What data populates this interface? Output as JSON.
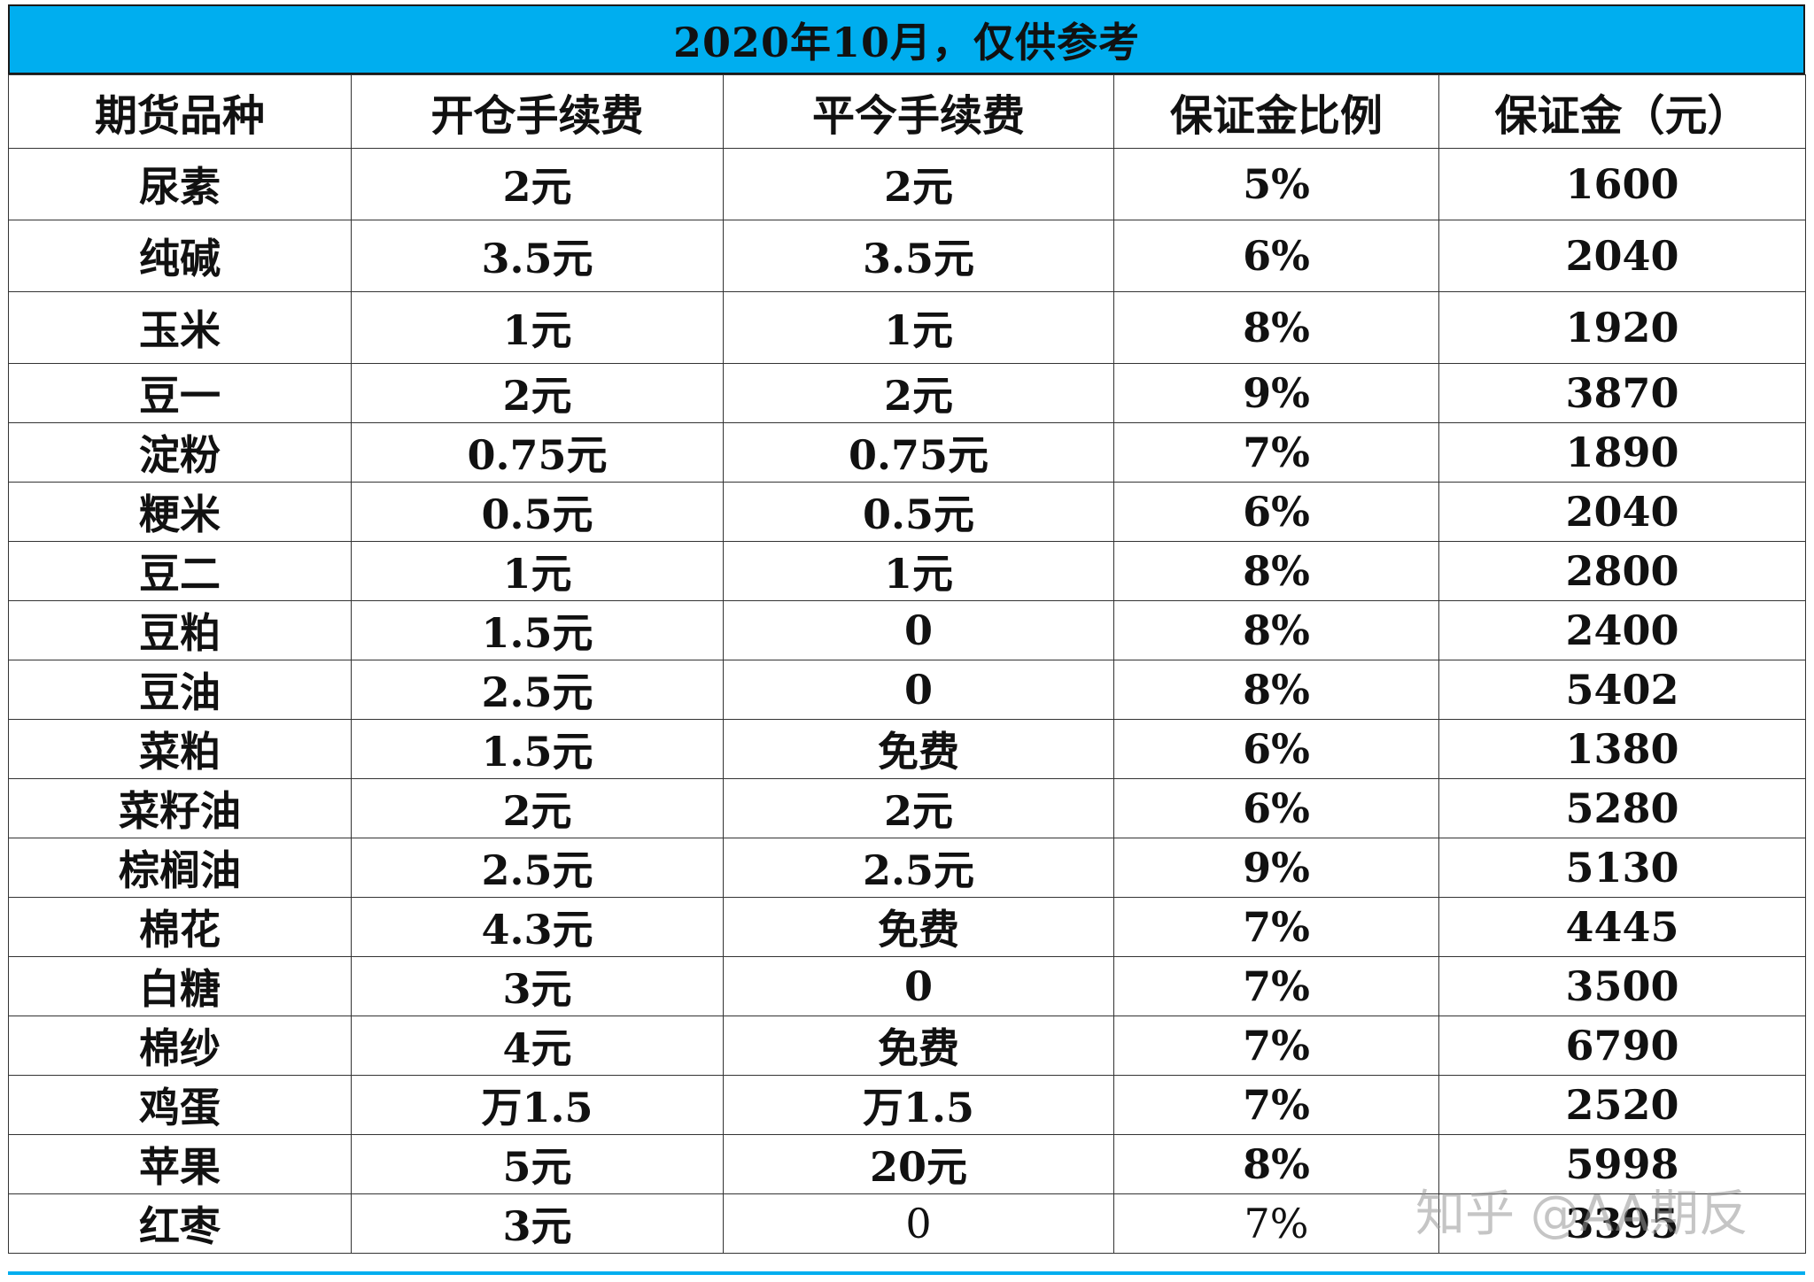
{
  "title": "2020年10月，仅供参考",
  "columns": [
    "期货品种",
    "开仓手续费",
    "平今手续费",
    "保证金比例",
    "保证金（元）"
  ],
  "rows": [
    [
      "尿素",
      "2元",
      "2元",
      "5%",
      "1600"
    ],
    [
      "纯碱",
      "3.5元",
      "3.5元",
      "6%",
      "2040"
    ],
    [
      "玉米",
      "1元",
      "1元",
      "8%",
      "1920"
    ],
    [
      "豆一",
      "2元",
      "2元",
      "9%",
      "3870"
    ],
    [
      "淀粉",
      "0.75元",
      "0.75元",
      "7%",
      "1890"
    ],
    [
      "粳米",
      "0.5元",
      "0.5元",
      "6%",
      "2040"
    ],
    [
      "豆二",
      "1元",
      "1元",
      "8%",
      "2800"
    ],
    [
      "豆粕",
      "1.5元",
      "0",
      "8%",
      "2400"
    ],
    [
      "豆油",
      "2.5元",
      "0",
      "8%",
      "5402"
    ],
    [
      "菜粕",
      "1.5元",
      "免费",
      "6%",
      "1380"
    ],
    [
      "菜籽油",
      "2元",
      "2元",
      "6%",
      "5280"
    ],
    [
      "棕榈油",
      "2.5元",
      "2.5元",
      "9%",
      "5130"
    ],
    [
      "棉花",
      "4.3元",
      "免费",
      "7%",
      "4445"
    ],
    [
      "白糖",
      "3元",
      "0",
      "7%",
      "3500"
    ],
    [
      "棉纱",
      "4元",
      "免费",
      "7%",
      "6790"
    ],
    [
      "鸡蛋",
      "万1.5",
      "万1.5",
      "7%",
      "2520"
    ],
    [
      "苹果",
      "5元",
      "20元",
      "8%",
      "5998"
    ],
    [
      "红枣",
      "3元",
      "0",
      "7%",
      "3395"
    ]
  ],
  "watermark": "知乎 @AA期反",
  "colors": {
    "title_background": "#00aeef",
    "grid_line": "#333333",
    "text": "#111111"
  }
}
